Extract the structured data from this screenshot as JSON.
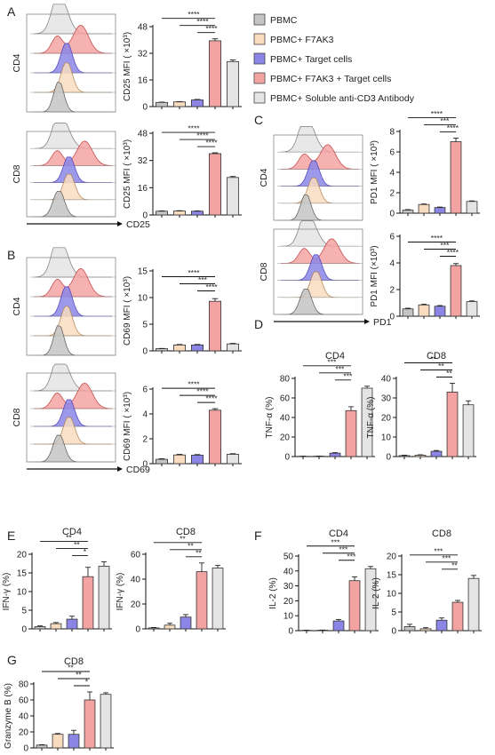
{
  "legend": {
    "entries": [
      {
        "label": "PBMC",
        "color": "#c4c4c4"
      },
      {
        "label": "PBMC+ F7AK3",
        "color": "#f9dcc0"
      },
      {
        "label": "PBMC+ Target cells",
        "color": "#8b86e6"
      },
      {
        "label": "PBMC+ F7AK3  + Target cells",
        "color": "#f4a3a3"
      },
      {
        "label": "PBMC+ Soluble anti-CD3 Antibody",
        "color": "#e4e4e4"
      }
    ]
  },
  "panel_letters": [
    "A",
    "B",
    "C",
    "D",
    "E",
    "F",
    "G"
  ],
  "histograms": [
    {
      "row_label": "CD4",
      "marker": ""
    },
    {
      "row_label": "CD8",
      "marker": "CD25"
    },
    {
      "row_label": "CD4",
      "marker": ""
    },
    {
      "row_label": "CD8",
      "marker": "CD69"
    },
    {
      "row_label": "CD4",
      "marker": ""
    },
    {
      "row_label": "CD8",
      "marker": "PD1"
    }
  ],
  "chart_data": [
    {
      "type": "bar",
      "panel": "A",
      "ylabel": "CD25 MFI ( ×10³)",
      "ylim": [
        0,
        48
      ],
      "yticks": [
        0,
        16,
        32,
        48
      ],
      "values": [
        2.5,
        2.8,
        4.0,
        39.5,
        27
      ],
      "errors": [
        0.2,
        0.2,
        0.3,
        1.2,
        1.0
      ],
      "sig": [
        {
          "from": 0,
          "to": 3,
          "label": "****"
        },
        {
          "from": 1,
          "to": 3,
          "label": "****"
        },
        {
          "from": 2,
          "to": 3,
          "label": "****"
        }
      ]
    },
    {
      "type": "bar",
      "panel": "A",
      "ylabel": "CD25 MFI ( ×10³)",
      "ylim": [
        0,
        48
      ],
      "yticks": [
        0,
        16,
        32,
        48
      ],
      "values": [
        2.2,
        2.3,
        2.2,
        36,
        22
      ],
      "errors": [
        0.2,
        0.2,
        0.2,
        0.5,
        0.6
      ],
      "sig": [
        {
          "from": 0,
          "to": 3,
          "label": "****"
        },
        {
          "from": 1,
          "to": 3,
          "label": "****"
        },
        {
          "from": 2,
          "to": 3,
          "label": "****"
        }
      ]
    },
    {
      "type": "bar",
      "panel": "B",
      "ylabel": "CD69 MFI ( ×10³)",
      "ylim": [
        0,
        15
      ],
      "yticks": [
        0,
        5,
        10,
        15
      ],
      "values": [
        0.4,
        1.1,
        1.1,
        9.3,
        1.3
      ],
      "errors": [
        0.05,
        0.1,
        0.1,
        0.5,
        0.1
      ],
      "sig": [
        {
          "from": 0,
          "to": 3,
          "label": "****"
        },
        {
          "from": 1,
          "to": 3,
          "label": "***"
        },
        {
          "from": 2,
          "to": 3,
          "label": "****"
        }
      ]
    },
    {
      "type": "bar",
      "panel": "B",
      "ylabel": "CD69 MFI ( ×10³)",
      "ylim": [
        0,
        6
      ],
      "yticks": [
        0,
        2,
        4,
        6
      ],
      "values": [
        0.35,
        0.7,
        0.68,
        4.3,
        0.75
      ],
      "errors": [
        0.05,
        0.05,
        0.05,
        0.12,
        0.05
      ],
      "sig": [
        {
          "from": 0,
          "to": 3,
          "label": "****"
        },
        {
          "from": 1,
          "to": 3,
          "label": "****"
        },
        {
          "from": 2,
          "to": 3,
          "label": "****"
        }
      ]
    },
    {
      "type": "bar",
      "panel": "C",
      "ylabel": "PD1 MFI ( ×10³)",
      "ylim": [
        0,
        8
      ],
      "yticks": [
        0,
        2,
        4,
        6,
        8
      ],
      "values": [
        0.3,
        0.85,
        0.55,
        7.0,
        1.15
      ],
      "errors": [
        0.05,
        0.05,
        0.05,
        0.35,
        0.05
      ],
      "sig": [
        {
          "from": 0,
          "to": 3,
          "label": "****"
        },
        {
          "from": 1,
          "to": 3,
          "label": "***"
        },
        {
          "from": 2,
          "to": 3,
          "label": "****"
        }
      ]
    },
    {
      "type": "bar",
      "panel": "C",
      "ylabel": "PD1 MFI (×10³)",
      "ylim": [
        0,
        6
      ],
      "yticks": [
        0,
        2,
        4,
        6
      ],
      "values": [
        0.55,
        0.85,
        0.75,
        3.8,
        1.1
      ],
      "errors": [
        0.05,
        0.05,
        0.05,
        0.15,
        0.05
      ],
      "sig": [
        {
          "from": 0,
          "to": 3,
          "label": "****"
        },
        {
          "from": 1,
          "to": 3,
          "label": "***"
        },
        {
          "from": 2,
          "to": 3,
          "label": "****"
        }
      ]
    },
    {
      "type": "bar",
      "panel": "D",
      "title": "CD4",
      "ylabel": "TNF-α (%)",
      "ylim": [
        0,
        80
      ],
      "yticks": [
        0,
        20,
        40,
        60,
        80
      ],
      "values": [
        0.3,
        0.4,
        3.5,
        47,
        70
      ],
      "errors": [
        0.1,
        0.1,
        0.5,
        4,
        2
      ],
      "sig": [
        {
          "from": 0,
          "to": 3,
          "label": "***"
        },
        {
          "from": 1,
          "to": 3,
          "label": "***"
        },
        {
          "from": 2,
          "to": 3,
          "label": "***"
        }
      ]
    },
    {
      "type": "bar",
      "panel": "D",
      "title": "CD8",
      "ylabel": "TNF-α (%)",
      "ylim": [
        0,
        40
      ],
      "yticks": [
        0,
        10,
        20,
        30,
        40
      ],
      "values": [
        0.5,
        0.7,
        2.7,
        33,
        26.5
      ],
      "errors": [
        0.2,
        0.2,
        0.4,
        4.5,
        2
      ],
      "sig": [
        {
          "from": 0,
          "to": 3,
          "label": "**"
        },
        {
          "from": 1,
          "to": 3,
          "label": "**"
        },
        {
          "from": 2,
          "to": 3,
          "label": "**"
        }
      ]
    },
    {
      "type": "bar",
      "panel": "E",
      "title": "CD4",
      "ylabel": "IFN-γ (%)",
      "ylim": [
        0,
        20
      ],
      "yticks": [
        0,
        5,
        10,
        15,
        20
      ],
      "values": [
        0.6,
        1.4,
        2.6,
        14,
        16.8
      ],
      "errors": [
        0.2,
        0.3,
        0.8,
        2.5,
        1.2
      ],
      "sig": [
        {
          "from": 0,
          "to": 3,
          "label": "**"
        },
        {
          "from": 1,
          "to": 3,
          "label": "**"
        },
        {
          "from": 2,
          "to": 3,
          "label": "*"
        }
      ]
    },
    {
      "type": "bar",
      "panel": "E",
      "title": "CD8",
      "ylabel": "IFN-γ (%)",
      "ylim": [
        0,
        60
      ],
      "yticks": [
        0,
        20,
        40,
        60
      ],
      "values": [
        0.8,
        3,
        9.5,
        46,
        49
      ],
      "errors": [
        0.3,
        1.5,
        2,
        7,
        2
      ],
      "sig": [
        {
          "from": 0,
          "to": 3,
          "label": "**"
        },
        {
          "from": 1,
          "to": 3,
          "label": "**"
        },
        {
          "from": 2,
          "to": 3,
          "label": "**"
        }
      ]
    },
    {
      "type": "bar",
      "panel": "F",
      "title": "CD4",
      "ylabel": "IL-2 (%)",
      "ylim": [
        0,
        50
      ],
      "yticks": [
        0,
        10,
        20,
        30,
        40,
        50
      ],
      "values": [
        0.2,
        0.3,
        6.5,
        33.5,
        41.5
      ],
      "errors": [
        0.1,
        0.1,
        1,
        2.5,
        1.5
      ],
      "sig": [
        {
          "from": 0,
          "to": 3,
          "label": "***"
        },
        {
          "from": 1,
          "to": 3,
          "label": "***"
        },
        {
          "from": 2,
          "to": 3,
          "label": "***"
        }
      ]
    },
    {
      "type": "bar",
      "panel": "F",
      "title": "CD8",
      "ylabel": "IL-2 (%)",
      "ylim": [
        0,
        20
      ],
      "yticks": [
        0,
        5,
        10,
        15,
        20
      ],
      "values": [
        1.1,
        0.5,
        2.8,
        7.6,
        14
      ],
      "errors": [
        0.6,
        0.3,
        0.6,
        0.5,
        0.8
      ],
      "sig": [
        {
          "from": 0,
          "to": 3,
          "label": "***"
        },
        {
          "from": 1,
          "to": 3,
          "label": "***"
        },
        {
          "from": 2,
          "to": 3,
          "label": "**"
        }
      ]
    },
    {
      "type": "bar",
      "panel": "G",
      "title": "CD8",
      "ylabel": "Granzyme B (%)",
      "ylim": [
        0,
        80
      ],
      "yticks": [
        0,
        20,
        40,
        60,
        80
      ],
      "values": [
        3.5,
        17,
        17,
        60,
        67
      ],
      "errors": [
        0.5,
        1,
        5,
        10,
        2
      ],
      "sig": [
        {
          "from": 0,
          "to": 3,
          "label": "**"
        },
        {
          "from": 1,
          "to": 3,
          "label": "**"
        },
        {
          "from": 2,
          "to": 3,
          "label": "*"
        }
      ]
    }
  ]
}
